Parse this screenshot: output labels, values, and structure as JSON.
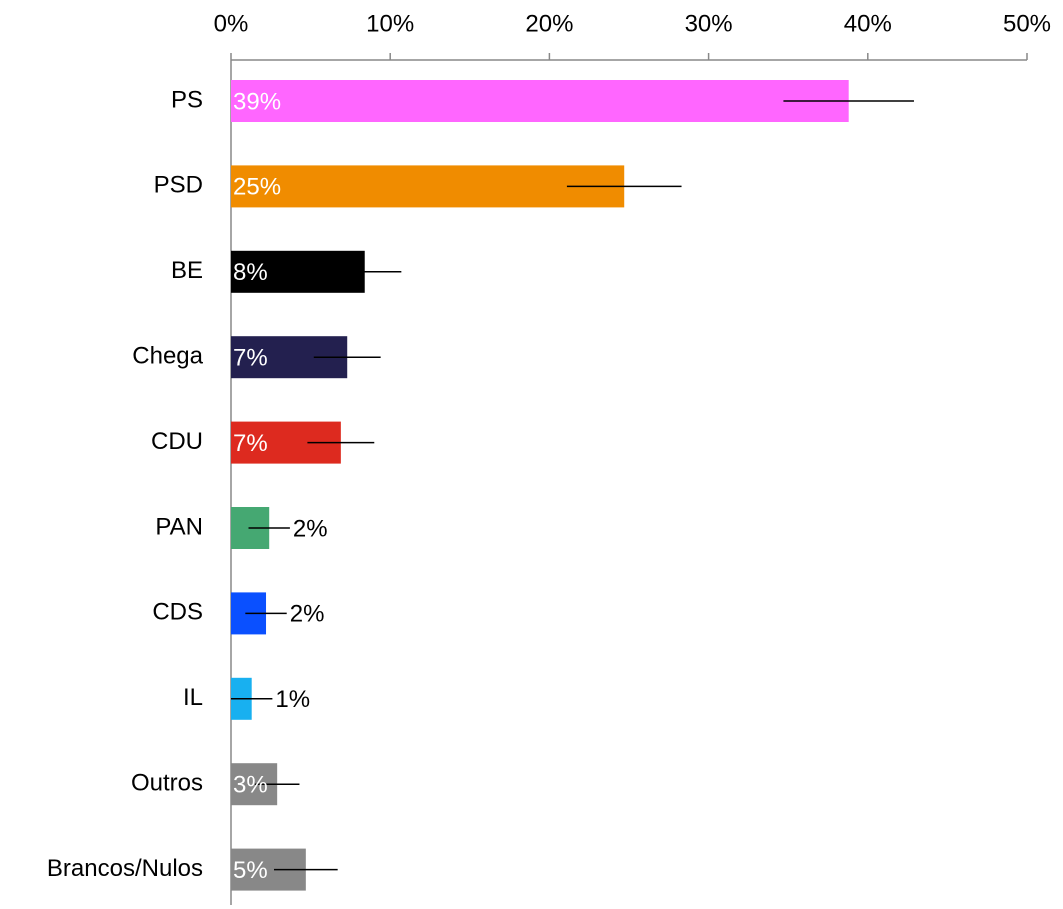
{
  "chart_data": {
    "type": "bar",
    "orientation": "horizontal",
    "categories": [
      "PS",
      "PSD",
      "BE",
      "Chega",
      "CDU",
      "PAN",
      "CDS",
      "IL",
      "Outros",
      "Brancos/Nulos"
    ],
    "values": [
      38.8,
      24.7,
      8.4,
      7.3,
      6.9,
      2.4,
      2.2,
      1.3,
      2.9,
      4.7
    ],
    "value_labels": [
      "39%",
      "25%",
      "8%",
      "7%",
      "7%",
      "2%",
      "2%",
      "1%",
      "3%",
      "5%"
    ],
    "errors": [
      4.1,
      3.6,
      2.3,
      2.1,
      2.1,
      1.3,
      1.3,
      1.3,
      1.4,
      2.0
    ],
    "colors": [
      "#ff66ff",
      "#f08c00",
      "#000000",
      "#23204f",
      "#dd2a1f",
      "#45a872",
      "#0a50ff",
      "#18b0f0",
      "#888888",
      "#888888"
    ],
    "xlim": [
      0,
      50
    ],
    "xticks": [
      {
        "value": 0,
        "label": "0%"
      },
      {
        "value": 10,
        "label": "10%"
      },
      {
        "value": 20,
        "label": "20%"
      },
      {
        "value": 30,
        "label": "30%"
      },
      {
        "value": 40,
        "label": "40%"
      },
      {
        "value": 50,
        "label": "50%"
      }
    ]
  }
}
